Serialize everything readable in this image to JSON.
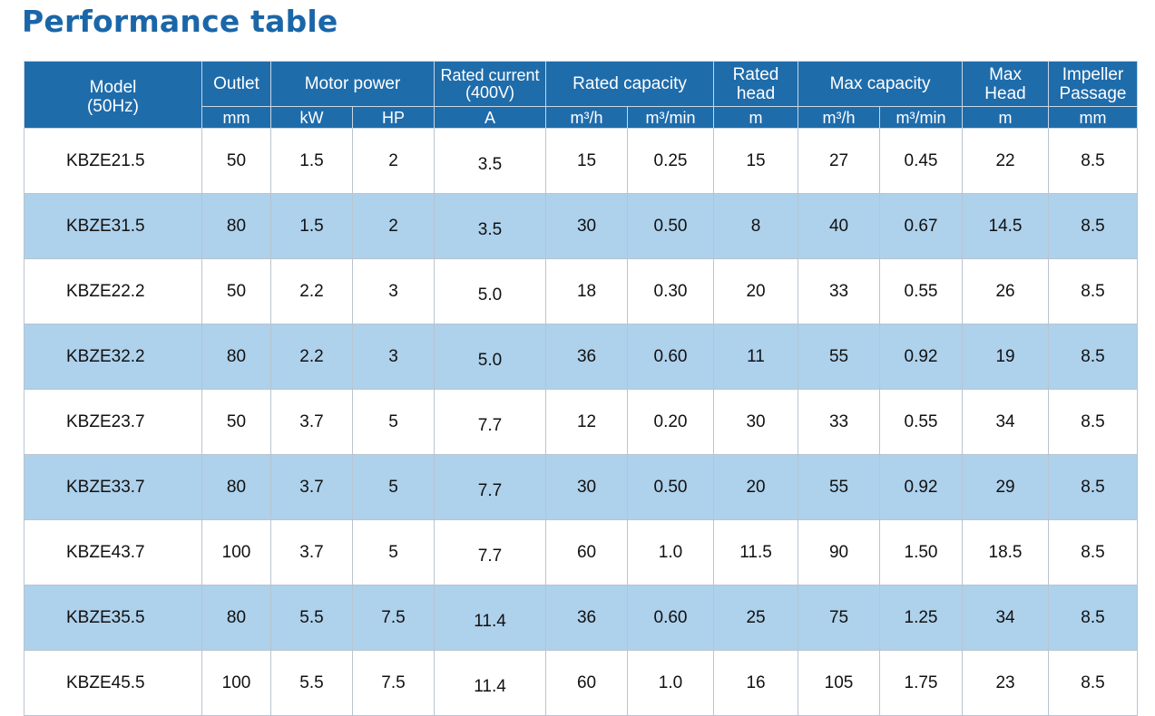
{
  "title": "Performance table",
  "colors": {
    "title": "#1a66a8",
    "header_bg": "#1f6cab",
    "row_shade": "#aed1ec",
    "row_plain": "#ffffff"
  },
  "header": {
    "model": "Model\n(50Hz)",
    "outlet": "Outlet",
    "motor_power": "Motor power",
    "rated_current": "Rated current\n(400V)",
    "rated_capacity": "Rated capacity",
    "rated_head": "Rated\nhead",
    "max_capacity": "Max capacity",
    "max_head": "Max\nHead",
    "impeller": "Impeller\nPassage"
  },
  "units": [
    "mm",
    "kW",
    "HP",
    "A",
    "m³/h",
    "m³/min",
    "m",
    "m³/h",
    "m³/min",
    "m",
    "mm"
  ],
  "rows": [
    [
      "KBZE21.5",
      "50",
      "1.5",
      "2",
      "3.5",
      "15",
      "0.25",
      "15",
      "27",
      "0.45",
      "22",
      "8.5"
    ],
    [
      "KBZE31.5",
      "80",
      "1.5",
      "2",
      "3.5",
      "30",
      "0.50",
      "8",
      "40",
      "0.67",
      "14.5",
      "8.5"
    ],
    [
      "KBZE22.2",
      "50",
      "2.2",
      "3",
      "5.0",
      "18",
      "0.30",
      "20",
      "33",
      "0.55",
      "26",
      "8.5"
    ],
    [
      "KBZE32.2",
      "80",
      "2.2",
      "3",
      "5.0",
      "36",
      "0.60",
      "11",
      "55",
      "0.92",
      "19",
      "8.5"
    ],
    [
      "KBZE23.7",
      "50",
      "3.7",
      "5",
      "7.7",
      "12",
      "0.20",
      "30",
      "33",
      "0.55",
      "34",
      "8.5"
    ],
    [
      "KBZE33.7",
      "80",
      "3.7",
      "5",
      "7.7",
      "30",
      "0.50",
      "20",
      "55",
      "0.92",
      "29",
      "8.5"
    ],
    [
      "KBZE43.7",
      "100",
      "3.7",
      "5",
      "7.7",
      "60",
      "1.0",
      "11.5",
      "90",
      "1.50",
      "18.5",
      "8.5"
    ],
    [
      "KBZE35.5",
      "80",
      "5.5",
      "7.5",
      "11.4",
      "36",
      "0.60",
      "25",
      "75",
      "1.25",
      "34",
      "8.5"
    ],
    [
      "KBZE45.5",
      "100",
      "5.5",
      "7.5",
      "11.4",
      "60",
      "1.0",
      "16",
      "105",
      "1.75",
      "23",
      "8.5"
    ]
  ]
}
